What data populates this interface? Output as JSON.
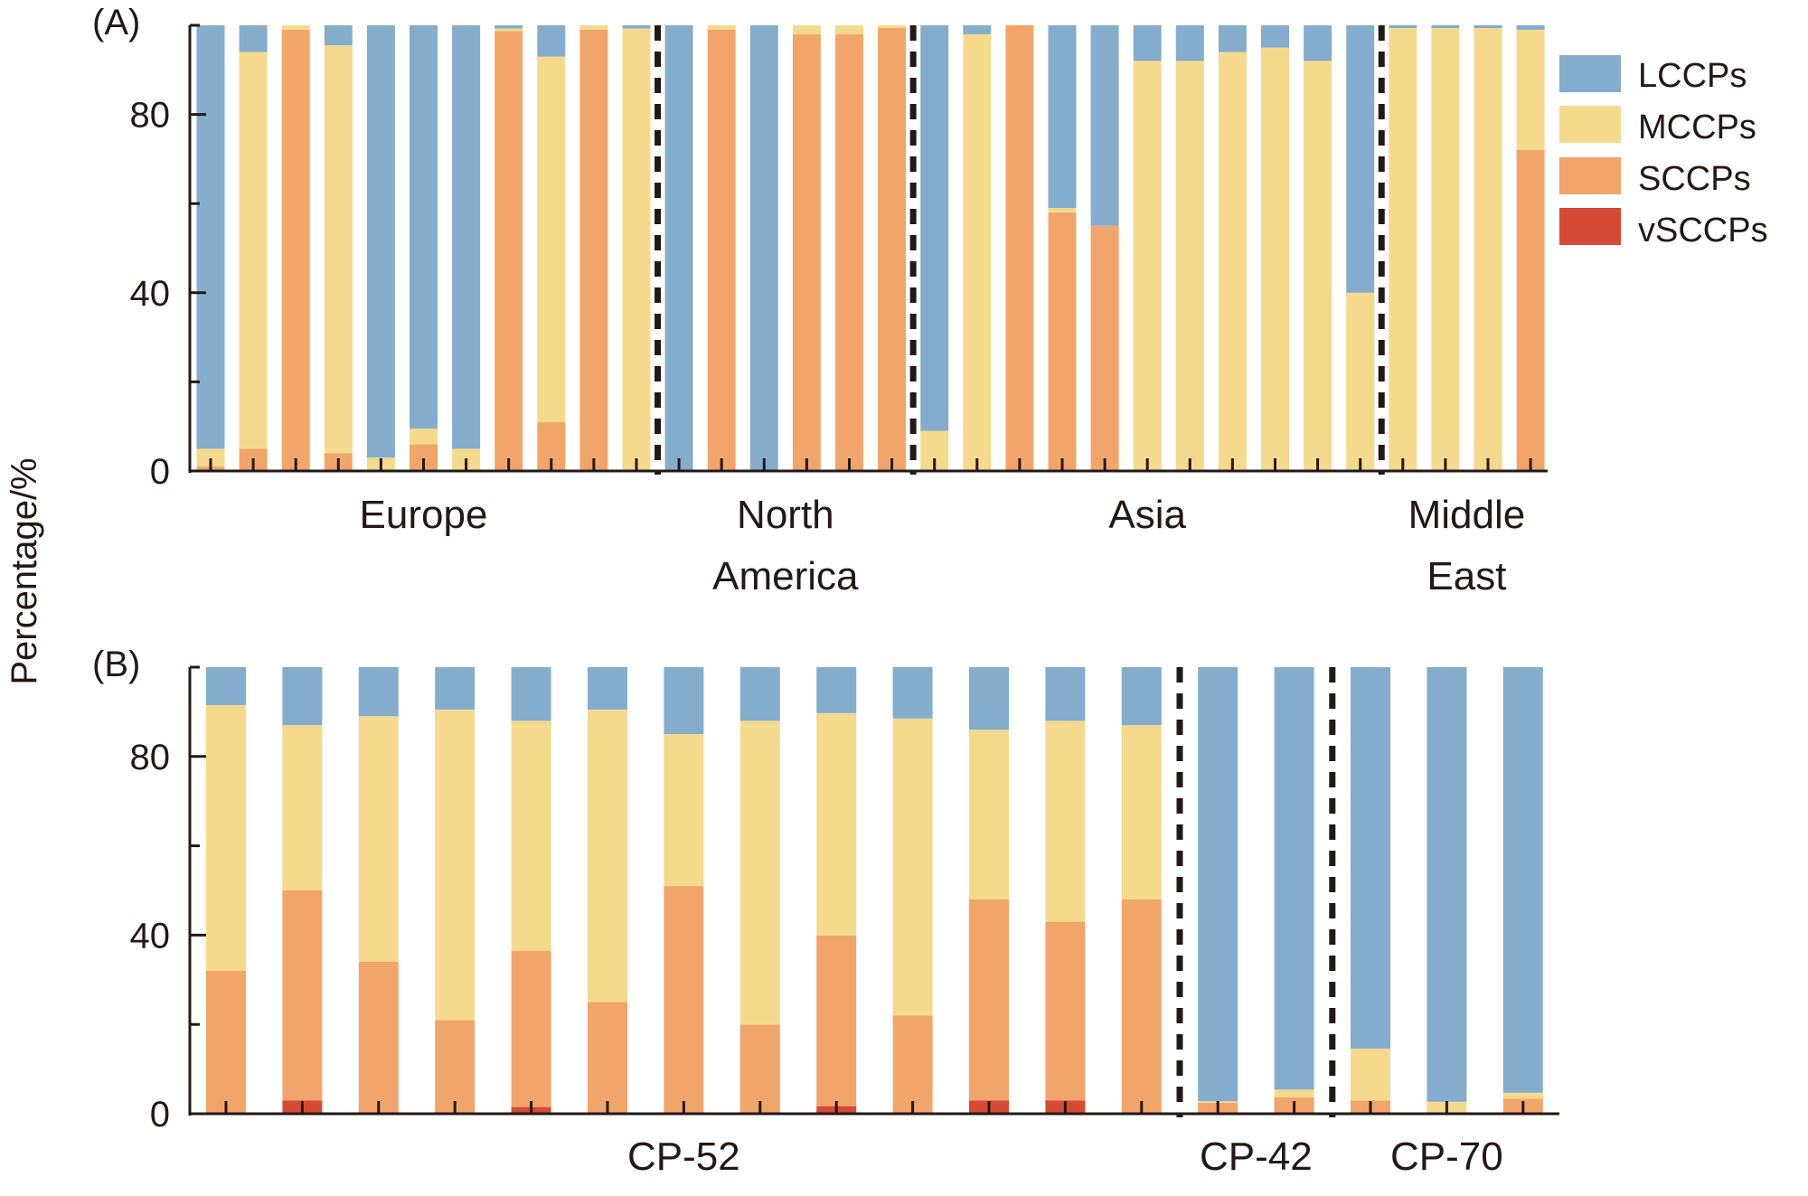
{
  "figure": {
    "ylabel": "Percentage/%",
    "colors": {
      "LCCPs": "#84ADCD",
      "MCCPs": "#F5DA8D",
      "SCCPs": "#F2A56B",
      "vSCCPs": "#D64A35",
      "axis": "#231815"
    },
    "legend": {
      "position": "right",
      "items": [
        "LCCPs",
        "MCCPs",
        "SCCPs",
        "vSCCPs"
      ]
    }
  },
  "chart_data": [
    {
      "type": "bar",
      "stacked": true,
      "panel_label": "(A)",
      "ylabel": "Percentage/%",
      "ylim": [
        0,
        100
      ],
      "yticks": [
        0,
        20,
        40,
        60,
        80,
        100
      ],
      "ytick_labels": [
        "0",
        "",
        "40",
        "",
        "80",
        ""
      ],
      "stack_order": [
        "vSCCPs",
        "SCCPs",
        "MCCPs",
        "LCCPs"
      ],
      "groups": [
        {
          "label_lines": [
            "Europe"
          ],
          "count": 11
        },
        {
          "label_lines": [
            "North",
            "America"
          ],
          "count": 6
        },
        {
          "label_lines": [
            "Asia"
          ],
          "count": 11
        },
        {
          "label_lines": [
            "Middle",
            "East"
          ],
          "count": 4
        }
      ],
      "series": [
        {
          "name": "vSCCPs",
          "values": [
            0,
            0,
            0,
            0,
            0,
            0,
            0,
            0,
            0,
            0,
            0,
            0,
            0,
            0,
            0,
            0,
            0,
            0,
            0,
            0,
            0,
            0,
            0,
            0,
            0,
            0,
            0,
            0,
            0,
            0,
            0,
            0
          ]
        },
        {
          "name": "SCCPs",
          "values": [
            1,
            5,
            99,
            4,
            0,
            6,
            0,
            98.7,
            11,
            99,
            0,
            0,
            99,
            0,
            98,
            98,
            99.4,
            0,
            0,
            100,
            58,
            55,
            0,
            0,
            0,
            0,
            0,
            0,
            0,
            0,
            0,
            72
          ]
        },
        {
          "name": "MCCPs",
          "values": [
            4,
            89,
            1,
            91.5,
            3,
            3.5,
            5,
            0.6,
            82,
            1,
            99.3,
            0,
            1,
            0,
            2,
            2,
            0.6,
            9,
            98,
            0,
            1,
            0,
            92,
            92,
            94,
            95,
            92,
            40,
            99.4,
            99.4,
            99.4,
            27
          ]
        },
        {
          "name": "LCCPs",
          "values": [
            95,
            6,
            0,
            4.5,
            97,
            90.5,
            95,
            0.7,
            7,
            0,
            0.7,
            100,
            0,
            100,
            0,
            0,
            0,
            91,
            2,
            0,
            41,
            45,
            8,
            8,
            6,
            5,
            8,
            60,
            0.6,
            0.6,
            0.6,
            1
          ]
        }
      ]
    },
    {
      "type": "bar",
      "stacked": true,
      "panel_label": "(B)",
      "ylabel": "Percentage/%",
      "ylim": [
        0,
        100
      ],
      "yticks": [
        0,
        20,
        40,
        60,
        80,
        100
      ],
      "ytick_labels": [
        "0",
        "",
        "40",
        "",
        "80",
        ""
      ],
      "stack_order": [
        "vSCCPs",
        "SCCPs",
        "MCCPs",
        "LCCPs"
      ],
      "groups": [
        {
          "label_lines": [
            "CP-52"
          ],
          "count": 13
        },
        {
          "label_lines": [
            "CP-42"
          ],
          "count": 2
        },
        {
          "label_lines": [
            "CP-70"
          ],
          "count": 3
        }
      ],
      "series": [
        {
          "name": "vSCCPs",
          "values": [
            0,
            3,
            0,
            0,
            1.5,
            0,
            0,
            0,
            1.7,
            0,
            3,
            3,
            0,
            0,
            0,
            0,
            0,
            0
          ]
        },
        {
          "name": "SCCPs",
          "values": [
            32,
            47,
            34,
            21,
            35,
            25,
            51,
            20,
            38.2,
            22,
            45,
            40,
            48,
            2.5,
            3.7,
            3,
            0.3,
            3.4
          ]
        },
        {
          "name": "MCCPs",
          "values": [
            59.5,
            37,
            55,
            69.5,
            51.5,
            65.5,
            34,
            68,
            49.8,
            66.5,
            38,
            45,
            39,
            0.3,
            1.7,
            11.6,
            2.4,
            1.3
          ]
        },
        {
          "name": "LCCPs",
          "values": [
            8.5,
            13,
            11,
            9.5,
            12,
            9.5,
            15,
            12,
            10.3,
            11.5,
            14,
            12,
            13,
            97.2,
            94.6,
            85.4,
            97.3,
            95.3
          ]
        }
      ]
    }
  ]
}
